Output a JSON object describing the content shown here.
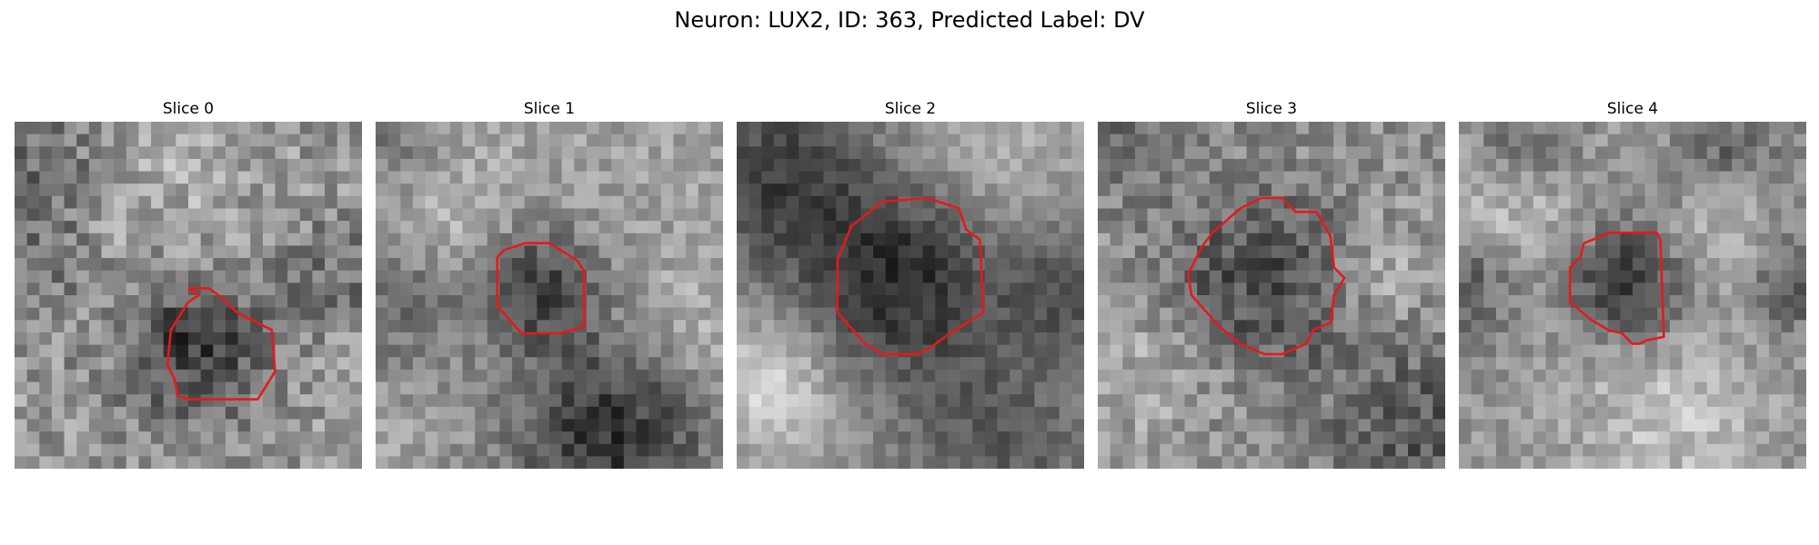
{
  "figure": {
    "title": "Neuron: LUX2, ID: 363, Predicted Label: DV"
  },
  "panels": [
    {
      "title": "Slice 0"
    },
    {
      "title": "Slice 1"
    },
    {
      "title": "Slice 2"
    },
    {
      "title": "Slice 3"
    },
    {
      "title": "Slice 4"
    }
  ],
  "colors": {
    "contour": "#e41a1c",
    "colormap": "grayscale"
  }
}
